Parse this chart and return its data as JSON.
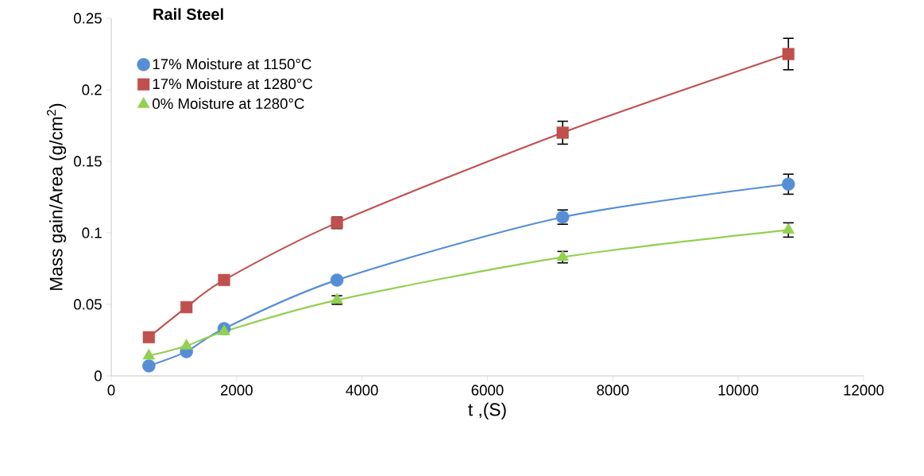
{
  "chart_data": {
    "type": "line",
    "title": "Rail Steel",
    "xlabel": "t ,(S)",
    "ylabel": "Mass gain/Area   (g/cm$^{2}$)",
    "x": [
      600,
      1200,
      1800,
      3600,
      7200,
      10800
    ],
    "series": [
      {
        "name": "17% Moisture at 1150°C",
        "color": "#558ed5",
        "marker": "circle",
        "values": [
          0.007,
          0.017,
          0.033,
          0.067,
          0.111,
          0.134
        ],
        "errors": [
          null,
          null,
          null,
          null,
          0.005,
          0.007
        ]
      },
      {
        "name": "17% Moisture at 1280°C",
        "color": "#c0504d",
        "marker": "square",
        "values": [
          0.027,
          0.048,
          0.067,
          0.107,
          0.17,
          0.225
        ],
        "errors": [
          null,
          null,
          null,
          0.004,
          0.008,
          0.011
        ]
      },
      {
        "name": "0%   Moisture at 1280°C",
        "color": "#92d050",
        "marker": "triangle",
        "values": [
          0.014,
          0.021,
          0.031,
          0.053,
          0.083,
          0.102
        ],
        "errors": [
          null,
          null,
          null,
          0.003,
          0.004,
          0.005
        ]
      }
    ],
    "xlim": [
      0,
      12000
    ],
    "xticks": [
      0,
      2000,
      4000,
      6000,
      8000,
      10000,
      12000
    ],
    "ylim": [
      0,
      0.25
    ],
    "yticks": [
      0,
      0.05,
      0.1,
      0.15,
      0.2,
      0.25
    ],
    "grid": false,
    "legend": "top left",
    "line_style": "solid"
  }
}
